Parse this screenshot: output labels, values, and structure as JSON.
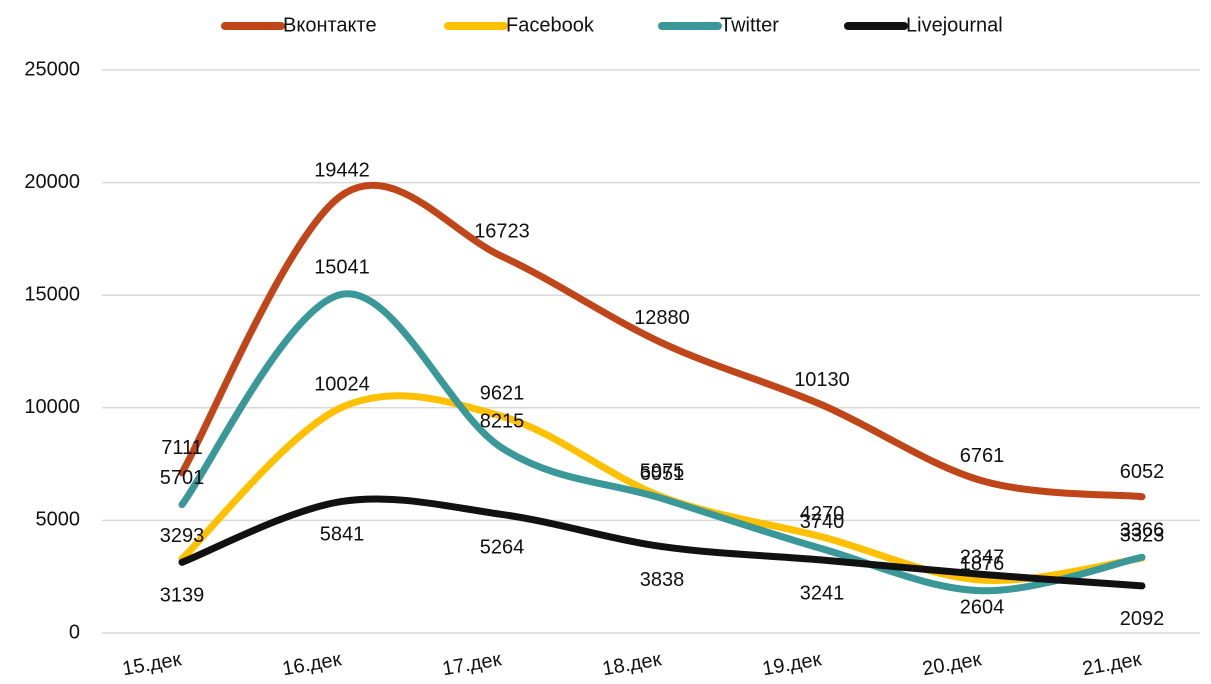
{
  "chart_data": {
    "type": "line",
    "categories": [
      "15.дек",
      "16.дек",
      "17.дек",
      "18.дек",
      "19.дек",
      "20.дек",
      "21.дек"
    ],
    "series": [
      {
        "name": "Вконтакте",
        "color": "#c0461a",
        "values": [
          7111,
          19442,
          16723,
          12880,
          10130,
          6761,
          6052
        ]
      },
      {
        "name": "Facebook",
        "color": "#ffc000",
        "values": [
          3293,
          10024,
          9621,
          6051,
          4270,
          2347,
          3323
        ]
      },
      {
        "name": "Twitter",
        "color": "#3a9898",
        "values": [
          5701,
          15041,
          8215,
          5975,
          3740,
          1876,
          3366
        ]
      },
      {
        "name": "Livejournal",
        "color": "#111111",
        "values": [
          3139,
          5841,
          5264,
          3838,
          3241,
          2604,
          2092
        ]
      }
    ],
    "ylim": [
      0,
      25000
    ],
    "yticks": [
      0,
      5000,
      10000,
      15000,
      20000,
      25000
    ],
    "grid": true,
    "legend": "top",
    "smooth": true
  }
}
